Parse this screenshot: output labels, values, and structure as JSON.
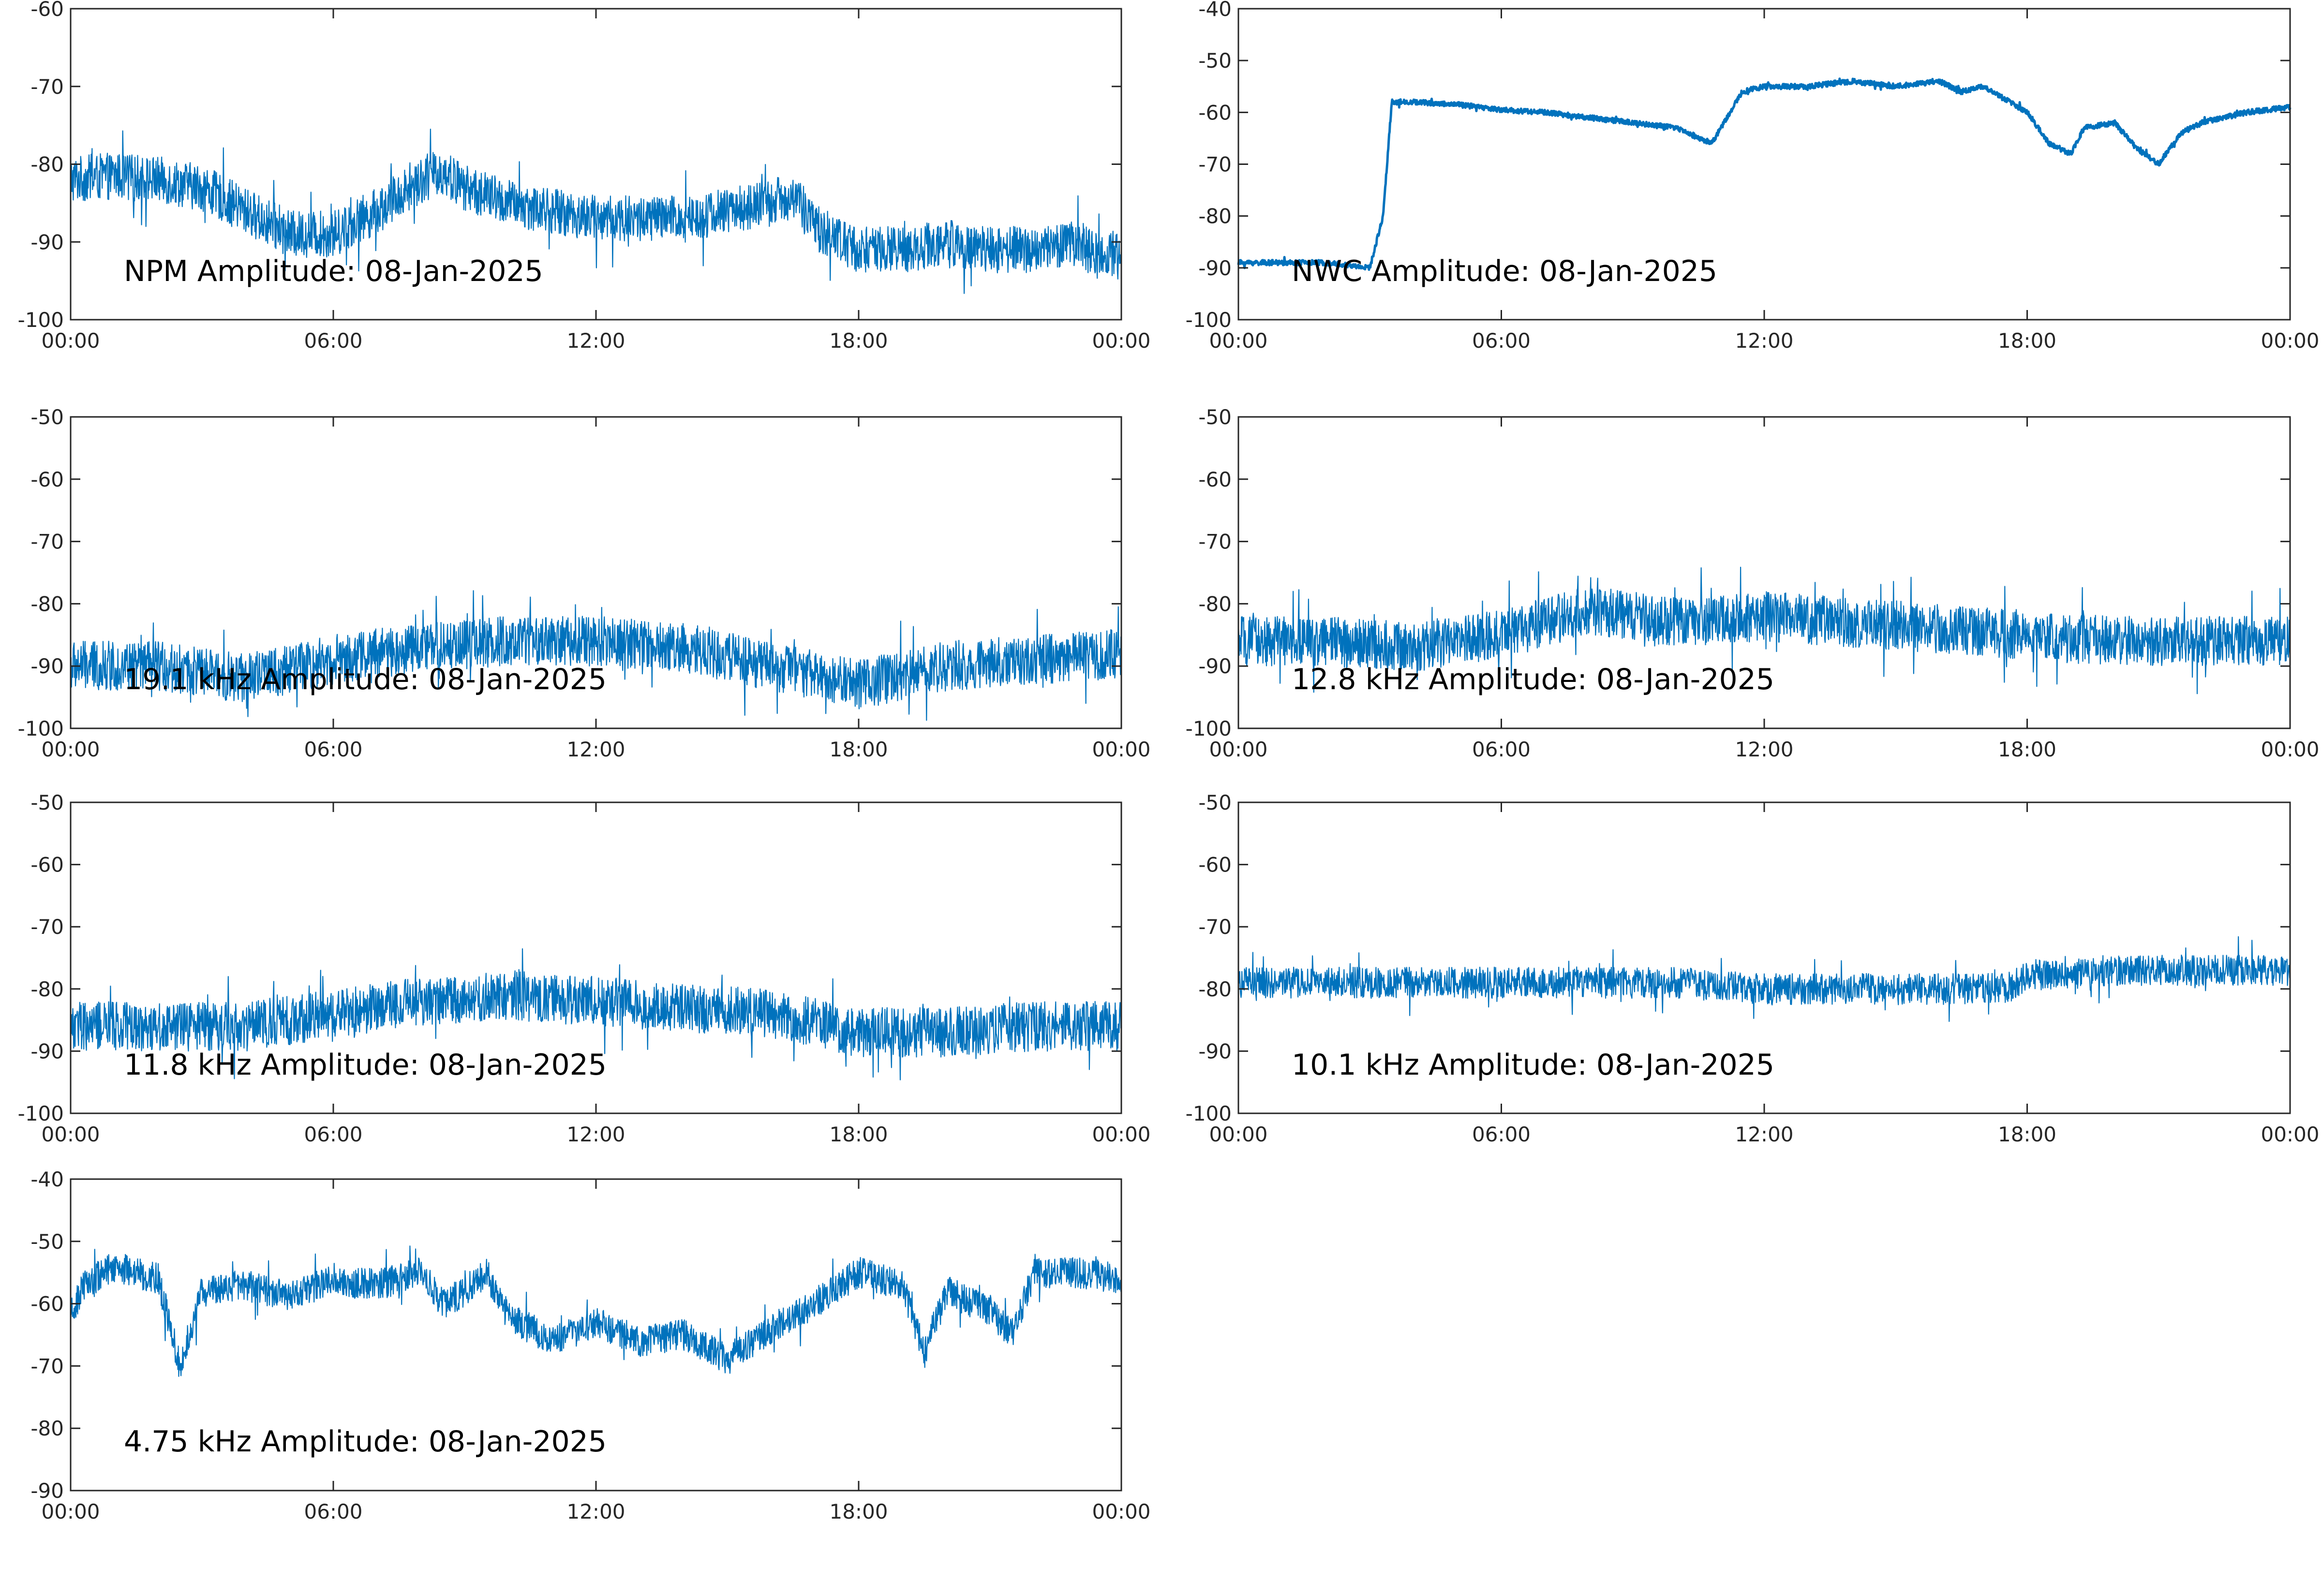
{
  "figure": {
    "line_color": "#0072bd"
  },
  "chart_data": [
    {
      "type": "line",
      "title": "NPM Amplitude: 08-Jan-2025",
      "xticks": [
        "00:00",
        "06:00",
        "12:00",
        "18:00",
        "00:00"
      ],
      "xlim": [
        0,
        24
      ],
      "ylim": [
        -100,
        -60
      ],
      "yticks": [
        "-60",
        "-70",
        "-80",
        "-90",
        "-100"
      ],
      "noise_amplitude": 3,
      "series": [
        {
          "x": [
            0,
            1,
            2,
            3,
            4,
            5,
            6,
            7,
            8,
            8.5,
            9,
            10,
            11,
            12,
            13,
            14,
            15,
            16,
            16.5,
            17,
            18,
            19,
            20,
            21,
            22,
            23,
            23.5,
            24
          ],
          "values": [
            -82,
            -81.5,
            -82,
            -83,
            -86,
            -89,
            -89,
            -86,
            -82,
            -81,
            -83,
            -85,
            -86,
            -87,
            -87,
            -87,
            -86,
            -85,
            -84,
            -88,
            -91,
            -91,
            -90,
            -91,
            -91,
            -90,
            -92,
            -91
          ]
        }
      ]
    },
    {
      "type": "line",
      "title": "NWC Amplitude: 08-Jan-2025",
      "xticks": [
        "00:00",
        "06:00",
        "12:00",
        "18:00",
        "00:00"
      ],
      "xlim": [
        0,
        24
      ],
      "ylim": [
        -100,
        -40
      ],
      "yticks": [
        "-40",
        "-50",
        "-60",
        "-70",
        "-80",
        "-90",
        "-100"
      ],
      "noise_amplitude": 0.5,
      "series": [
        {
          "x": [
            0,
            1,
            2,
            3,
            3.3,
            3.5,
            4,
            5,
            6,
            7,
            8,
            9,
            10,
            10.8,
            11.5,
            12,
            13,
            14,
            15,
            16,
            16.5,
            17,
            18,
            18.5,
            19,
            19.3,
            20,
            20.5,
            21,
            21.5,
            22,
            23,
            24
          ],
          "values": [
            -89,
            -89,
            -89,
            -90,
            -80,
            -58,
            -58,
            -58.5,
            -59.5,
            -60,
            -61,
            -62,
            -63,
            -66,
            -56,
            -55,
            -55,
            -54,
            -55,
            -54,
            -56,
            -55,
            -60,
            -66,
            -68,
            -63,
            -62,
            -67,
            -70,
            -64,
            -62,
            -60,
            -59
          ]
        }
      ]
    },
    {
      "type": "line",
      "title": "19.1 kHz Amplitude: 08-Jan-2025",
      "xticks": [
        "00:00",
        "06:00",
        "12:00",
        "18:00",
        "00:00"
      ],
      "xlim": [
        0,
        24
      ],
      "ylim": [
        -100,
        -50
      ],
      "yticks": [
        "-50",
        "-60",
        "-70",
        "-80",
        "-90",
        "-100"
      ],
      "noise_amplitude": 4,
      "series": [
        {
          "x": [
            0,
            2,
            4,
            6,
            8,
            10,
            12,
            14,
            16,
            18,
            20,
            22,
            24
          ],
          "values": [
            -90,
            -90,
            -92,
            -89,
            -87,
            -86,
            -86,
            -87,
            -90,
            -93,
            -90,
            -89,
            -88
          ]
        }
      ]
    },
    {
      "type": "line",
      "title": "12.8 kHz Amplitude: 08-Jan-2025",
      "xticks": [
        "00:00",
        "06:00",
        "12:00",
        "18:00",
        "00:00"
      ],
      "xlim": [
        0,
        24
      ],
      "ylim": [
        -100,
        -50
      ],
      "yticks": [
        "-50",
        "-60",
        "-70",
        "-80",
        "-90",
        "-100"
      ],
      "noise_amplitude": 4,
      "series": [
        {
          "x": [
            0,
            2,
            4,
            6,
            8,
            10,
            12,
            14,
            16,
            18,
            20,
            22,
            24
          ],
          "values": [
            -86,
            -86,
            -87,
            -85,
            -81,
            -83,
            -82,
            -83,
            -84,
            -85,
            -86,
            -86,
            -86
          ]
        }
      ]
    },
    {
      "type": "line",
      "title": "11.8 kHz Amplitude: 08-Jan-2025",
      "xticks": [
        "00:00",
        "06:00",
        "12:00",
        "18:00",
        "00:00"
      ],
      "xlim": [
        0,
        24
      ],
      "ylim": [
        -100,
        -50
      ],
      "yticks": [
        "-50",
        "-60",
        "-70",
        "-80",
        "-90",
        "-100"
      ],
      "noise_amplitude": 4,
      "series": [
        {
          "x": [
            0,
            2,
            4,
            6,
            8,
            10,
            12,
            14,
            16,
            18,
            20,
            22,
            24
          ],
          "values": [
            -86,
            -86,
            -86,
            -84,
            -82,
            -81,
            -82,
            -83,
            -84,
            -87,
            -87,
            -86,
            -86
          ]
        }
      ]
    },
    {
      "type": "line",
      "title": "10.1 kHz Amplitude: 08-Jan-2025",
      "xticks": [
        "00:00",
        "06:00",
        "12:00",
        "18:00",
        "00:00"
      ],
      "xlim": [
        0,
        24
      ],
      "ylim": [
        -100,
        -50
      ],
      "yticks": [
        "-50",
        "-60",
        "-70",
        "-80",
        "-90",
        "-100"
      ],
      "noise_amplitude": 2.5,
      "series": [
        {
          "x": [
            0,
            2,
            4,
            6,
            8,
            10,
            12,
            14,
            16,
            17.5,
            18,
            20,
            22,
            24
          ],
          "values": [
            -79,
            -79,
            -79,
            -79,
            -79,
            -79,
            -80,
            -80,
            -80,
            -80,
            -78,
            -77,
            -77,
            -77
          ]
        }
      ]
    },
    {
      "type": "line",
      "title": "4.75 kHz Amplitude: 08-Jan-2025",
      "xticks": [
        "00:00",
        "06:00",
        "12:00",
        "18:00",
        "00:00"
      ],
      "xlim": [
        0,
        24
      ],
      "ylim": [
        -90,
        -40
      ],
      "yticks": [
        "-40",
        "-50",
        "-60",
        "-70",
        "-80",
        "-90"
      ],
      "noise_amplitude": 2.5,
      "series": [
        {
          "x": [
            0,
            0.3,
            1,
            2,
            2.5,
            3,
            4,
            5,
            6,
            7,
            8,
            8.5,
            9,
            9.5,
            10,
            11,
            12,
            13,
            14,
            15,
            16,
            17,
            18,
            19,
            19.5,
            20,
            21,
            21.5,
            22,
            23,
            24
          ],
          "values": [
            -62,
            -57,
            -54,
            -56,
            -70,
            -58,
            -57,
            -59,
            -56,
            -57,
            -55,
            -60,
            -58,
            -55,
            -62,
            -66,
            -63,
            -66,
            -65,
            -69,
            -64,
            -60,
            -55,
            -57,
            -68,
            -58,
            -61,
            -65,
            -55,
            -55,
            -56
          ]
        }
      ]
    }
  ]
}
